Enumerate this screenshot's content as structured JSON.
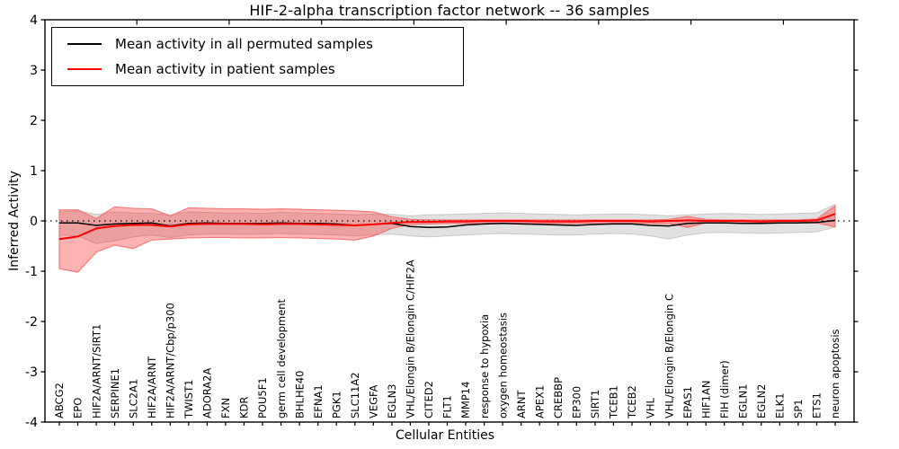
{
  "figure": {
    "title": "HIF-2-alpha transcription factor network -- 36 samples",
    "xlabel": "Cellular Entities",
    "ylabel": "Inferred Activity",
    "sample_count": "36",
    "legend": [
      {
        "label": "Mean activity in all permuted samples",
        "color": "#000000"
      },
      {
        "label": "Mean activity in patient samples",
        "color": "#ff0000"
      }
    ]
  },
  "chart_data": {
    "type": "line",
    "title": "HIF-2-alpha transcription factor network -- 36 samples",
    "xlabel": "Cellular Entities",
    "ylabel": "Inferred Activity",
    "ylim": [
      -4,
      4
    ],
    "yticks": [
      -4,
      -3,
      -2,
      -1,
      0,
      1,
      2,
      3,
      4
    ],
    "grid": false,
    "legend_position": "upper left",
    "zero_reference_line": {
      "y": 0,
      "style": "dotted",
      "color": "#000000"
    },
    "x_tick_label_rotation": 90,
    "categories": [
      "ABCG2",
      "EPO",
      "HIF2A/ARNT/SIRT1",
      "SERPINE1",
      "SLC2A1",
      "HIF2A/ARNT",
      "HIF2A/ARNT/Cbp/p300",
      "TWIST1",
      "ADORA2A",
      "FXN",
      "KDR",
      "POU5F1",
      "germ cell development",
      "BHLHE40",
      "EFNA1",
      "PGK1",
      "SLC11A2",
      "VEGFA",
      "EGLN3",
      "VHL/Elongin B/Elongin C/HIF2A",
      "CITED2",
      "FLT1",
      "MMP14",
      "response to hypoxia",
      "oxygen homeostasis",
      "ARNT",
      "APEX1",
      "CREBBP",
      "EP300",
      "SIRT1",
      "TCEB1",
      "TCEB2",
      "VHL",
      "VHL/Elongin B/Elongin C",
      "EPAS1",
      "HIF1AN",
      "FIH (dimer)",
      "EGLN1",
      "EGLN2",
      "ELK1",
      "SP1",
      "ETS1",
      "neuron apoptosis"
    ],
    "series": [
      {
        "name": "Mean activity in all permuted samples",
        "color": "#000000",
        "band_color": "#9a9a9a",
        "values": [
          -0.04,
          -0.04,
          -0.09,
          -0.06,
          -0.05,
          -0.04,
          -0.1,
          -0.05,
          -0.04,
          -0.05,
          -0.05,
          -0.05,
          -0.04,
          -0.05,
          -0.05,
          -0.06,
          -0.09,
          -0.07,
          -0.05,
          -0.11,
          -0.13,
          -0.12,
          -0.08,
          -0.06,
          -0.05,
          -0.06,
          -0.07,
          -0.08,
          -0.09,
          -0.07,
          -0.06,
          -0.06,
          -0.09,
          -0.1,
          -0.05,
          -0.04,
          -0.04,
          -0.05,
          -0.05,
          -0.04,
          -0.04,
          -0.03,
          0.01
        ],
        "band_upper": [
          0.18,
          0.2,
          0.13,
          0.18,
          0.16,
          0.15,
          0.12,
          0.18,
          0.17,
          0.16,
          0.16,
          0.15,
          0.17,
          0.16,
          0.15,
          0.14,
          0.12,
          0.14,
          0.13,
          0.1,
          0.12,
          0.13,
          0.14,
          0.15,
          0.16,
          0.15,
          0.14,
          0.13,
          0.12,
          0.13,
          0.14,
          0.14,
          0.12,
          0.1,
          0.12,
          0.14,
          0.15,
          0.14,
          0.13,
          0.14,
          0.15,
          0.16,
          0.33
        ],
        "band_lower": [
          -0.28,
          -0.3,
          -0.45,
          -0.4,
          -0.32,
          -0.28,
          -0.33,
          -0.28,
          -0.26,
          -0.26,
          -0.27,
          -0.26,
          -0.25,
          -0.26,
          -0.27,
          -0.28,
          -0.3,
          -0.28,
          -0.26,
          -0.3,
          -0.32,
          -0.3,
          -0.28,
          -0.26,
          -0.25,
          -0.26,
          -0.27,
          -0.28,
          -0.28,
          -0.26,
          -0.25,
          -0.26,
          -0.3,
          -0.36,
          -0.28,
          -0.24,
          -0.23,
          -0.24,
          -0.25,
          -0.24,
          -0.23,
          -0.22,
          -0.12
        ]
      },
      {
        "name": "Mean activity in patient samples",
        "color": "#ff0000",
        "band_color": "#ff2a2a",
        "values": [
          -0.36,
          -0.31,
          -0.15,
          -0.1,
          -0.08,
          -0.08,
          -0.11,
          -0.07,
          -0.06,
          -0.06,
          -0.06,
          -0.07,
          -0.06,
          -0.06,
          -0.07,
          -0.08,
          -0.09,
          -0.07,
          -0.04,
          -0.02,
          -0.02,
          -0.01,
          -0.01,
          0.0,
          0.0,
          0.0,
          -0.01,
          -0.01,
          -0.01,
          0.0,
          0.0,
          0.0,
          -0.01,
          0.0,
          0.01,
          0.0,
          0.0,
          0.0,
          -0.01,
          0.0,
          0.0,
          0.01,
          0.14
        ],
        "band_upper": [
          0.22,
          0.22,
          0.05,
          0.28,
          0.25,
          0.24,
          0.1,
          0.26,
          0.25,
          0.24,
          0.24,
          0.23,
          0.24,
          0.23,
          0.22,
          0.21,
          0.2,
          0.18,
          0.08,
          0.03,
          0.02,
          0.02,
          0.02,
          0.02,
          0.02,
          0.02,
          0.02,
          0.02,
          0.02,
          0.02,
          0.02,
          0.02,
          0.02,
          0.03,
          0.09,
          0.03,
          0.02,
          0.02,
          0.02,
          0.02,
          0.02,
          0.04,
          0.3
        ],
        "band_lower": [
          -0.95,
          -1.02,
          -0.62,
          -0.48,
          -0.55,
          -0.38,
          -0.36,
          -0.34,
          -0.33,
          -0.33,
          -0.34,
          -0.34,
          -0.33,
          -0.34,
          -0.35,
          -0.36,
          -0.38,
          -0.3,
          -0.15,
          -0.07,
          -0.06,
          -0.05,
          -0.05,
          -0.04,
          -0.04,
          -0.04,
          -0.05,
          -0.05,
          -0.05,
          -0.04,
          -0.04,
          -0.04,
          -0.05,
          -0.05,
          -0.13,
          -0.04,
          -0.04,
          -0.04,
          -0.04,
          -0.04,
          -0.04,
          -0.04,
          -0.12
        ]
      }
    ]
  }
}
